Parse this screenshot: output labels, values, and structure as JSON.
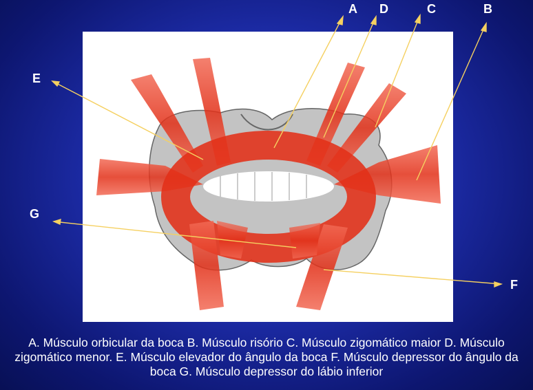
{
  "labels": {
    "a": "A",
    "b": "B",
    "c": "C",
    "d": "D",
    "e": "E",
    "f": "F",
    "g": "G"
  },
  "caption": "A. Músculo orbicular da boca B. Músculo risório C. Músculo zigomático maior D. Músculo zigomático menor. E. Músculo elevador do ângulo da boca F. Músculo depressor do ângulo da boca G. Músculo depressor do lábio inferior",
  "colors": {
    "background": "#1f2fb0",
    "muscle": "#e8321e",
    "leader": "#f5d060",
    "text": "#ffffff"
  }
}
